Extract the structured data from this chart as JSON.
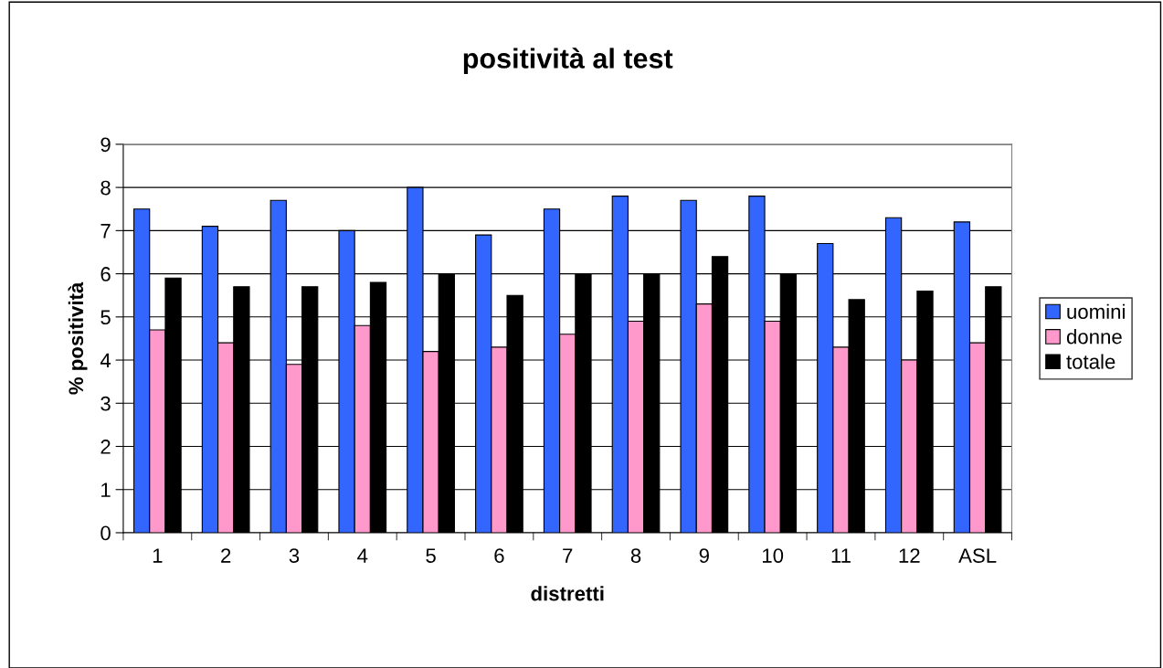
{
  "chart_data": {
    "type": "bar",
    "title": "positività al test",
    "xlabel": "distretti",
    "ylabel": "% positività",
    "categories": [
      "1",
      "2",
      "3",
      "4",
      "5",
      "6",
      "7",
      "8",
      "9",
      "10",
      "11",
      "12",
      "ASL"
    ],
    "series": [
      {
        "name": "uomini",
        "color": "#3366ff",
        "values": [
          7.5,
          7.1,
          7.7,
          7.0,
          8.0,
          6.9,
          7.5,
          7.8,
          7.7,
          7.8,
          6.7,
          7.3,
          7.2
        ]
      },
      {
        "name": "donne",
        "color": "#ff99cc",
        "values": [
          4.7,
          4.4,
          3.9,
          4.8,
          4.2,
          4.3,
          4.6,
          4.9,
          5.3,
          4.9,
          4.3,
          4.0,
          4.4
        ]
      },
      {
        "name": "totale",
        "color": "#000000",
        "values": [
          5.9,
          5.7,
          5.7,
          5.8,
          6.0,
          5.5,
          6.0,
          6.0,
          6.4,
          6.0,
          5.4,
          5.6,
          5.7
        ]
      }
    ],
    "ylim": [
      0,
      9
    ],
    "yticks": [
      0,
      1,
      2,
      3,
      4,
      5,
      6,
      7,
      8,
      9
    ],
    "grid": "y",
    "legend": "right"
  }
}
